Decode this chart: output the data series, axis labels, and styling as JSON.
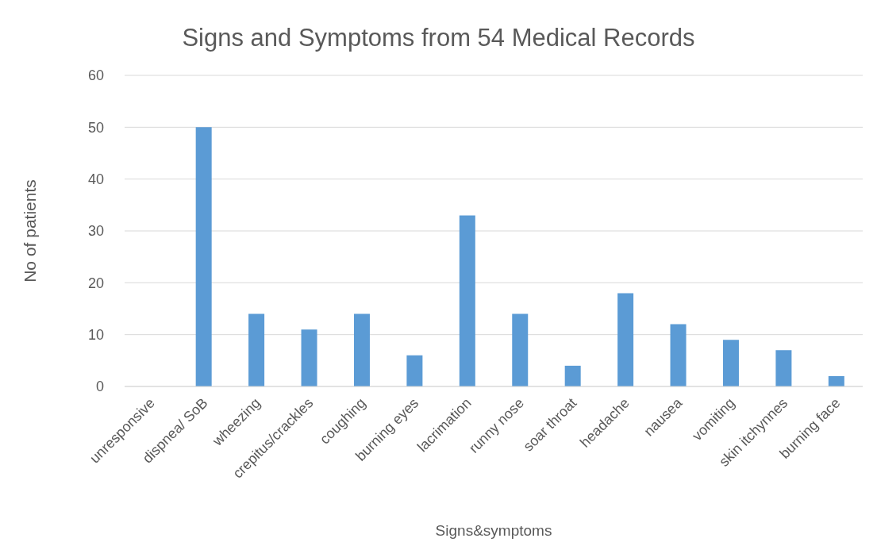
{
  "chart_data": {
    "type": "bar",
    "title": "Signs and Symptoms from 54 Medical Records",
    "xlabel": "Signs&symptoms",
    "ylabel": "No of patients",
    "categories": [
      "unresponsive",
      "dispnea/ SoB",
      "wheezing",
      "crepitus/crackles",
      "coughing",
      "burning eyes",
      "lacrimation",
      "runny nose",
      "soar throat",
      "headache",
      "nausea",
      "vomiting",
      "skin itchynnes",
      "burning face"
    ],
    "values": [
      0,
      50,
      14,
      11,
      14,
      6,
      33,
      14,
      4,
      18,
      12,
      9,
      7,
      2
    ],
    "color": "#5b9bd5",
    "ylim": [
      0,
      60
    ],
    "yticks": [
      0,
      10,
      20,
      30,
      40,
      50,
      60
    ],
    "grid": "y",
    "legend": false
  }
}
